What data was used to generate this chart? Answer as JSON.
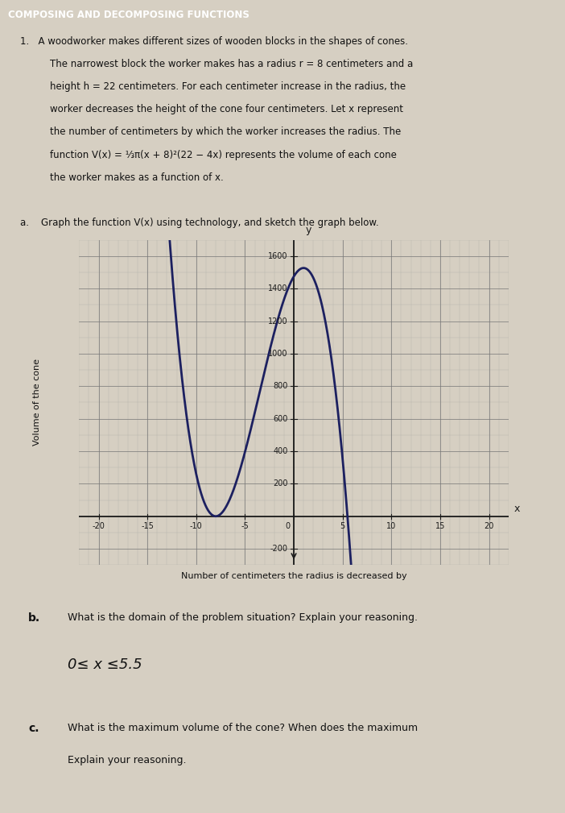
{
  "title": "COMPOSING AND DECOMPOSING FUNCTIONS",
  "paper_color": "#d6cfc2",
  "graph_bg": "#e8e2d8",
  "title_bg": "#2a2a2a",
  "title_color": "#ffffff",
  "curve_color": "#1c2060",
  "grid_minor_color": "#999999",
  "grid_major_color": "#777777",
  "text_color": "#111111",
  "xmin": -22,
  "xmax": 22,
  "ymin": -300,
  "ymax": 1700,
  "xlim_display": [
    -21,
    22
  ],
  "ylim_display": [
    -280,
    1700
  ],
  "xtick_labels": [
    -20,
    -15,
    -10,
    -5,
    0,
    5,
    10,
    15,
    20
  ],
  "ytick_labels": [
    -200,
    200,
    400,
    600,
    800,
    1000,
    1200,
    1400,
    1600
  ],
  "xlabel": "Number of centimeters the radius is decreased by",
  "ylabel": "Volume of the cone",
  "part_b_label": "b.",
  "part_b_question": "What is the domain of the problem situation? Explain your reasoning.",
  "part_b_answer": "0≤ x ≤5.5",
  "part_c_label": "c.",
  "part_c_question": "What is the maximum volume of the cone? When does the maximum",
  "part_c_explain": "Explain your reasoning.",
  "problem_number": "1.",
  "prob_line1": "A woodworker makes different sizes of wooden blocks in the shapes of cones.",
  "prob_line2": "The narrowest block the worker makes has a radius r = 8 centimeters and a",
  "prob_line3": "height h = 22 centimeters. For each centimeter increase in the radius, the",
  "prob_line4": "worker decreases the height of the cone four centimeters. Let x represent",
  "prob_line5": "the number of centimeters by which the worker increases the radius. The",
  "prob_line6": "function V(x) = ⅓π(x + 8)²(22 − 4x) represents the volume of each cone",
  "prob_line7": "the worker makes as a function of x.",
  "part_a_label": "a.",
  "part_a_text": "Graph the function V(x) using technology, and sketch the graph below."
}
